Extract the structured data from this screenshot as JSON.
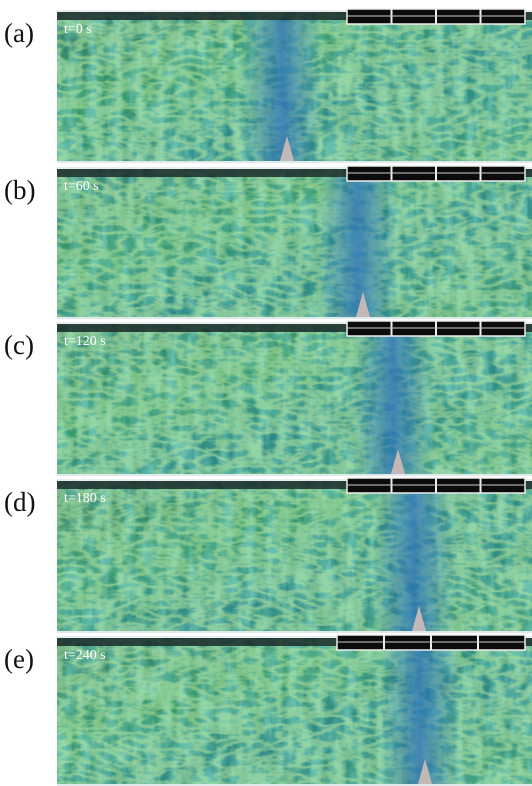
{
  "panels": [
    {
      "label": "(a)",
      "time": "t=0 s"
    },
    {
      "label": "(b)",
      "time": "t=60 s"
    },
    {
      "label": "(c)",
      "time": "t=120 s"
    },
    {
      "label": "(d)",
      "time": "t=180 s"
    },
    {
      "label": "(e)",
      "time": "t=240 s"
    }
  ]
}
